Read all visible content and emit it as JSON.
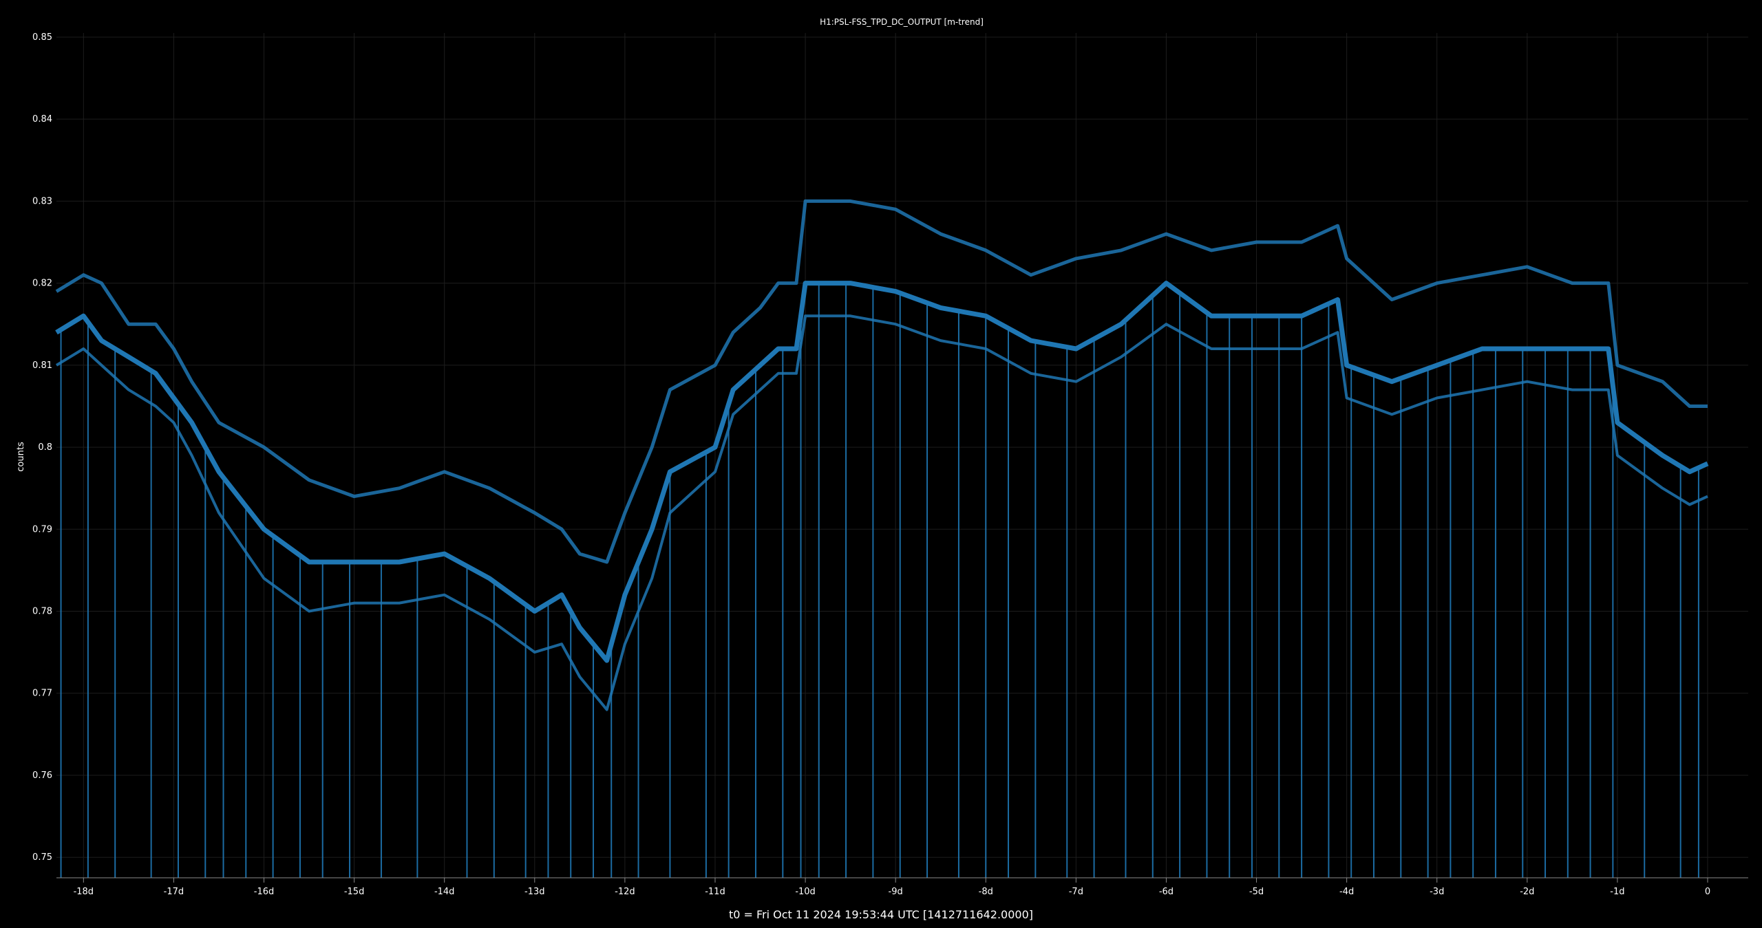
{
  "chart_data": {
    "type": "line",
    "title": "H1:PSL-FSS_TPD_DC_OUTPUT [m-trend]",
    "xlabel": "t0 = Fri Oct 11 2024 19:53:44 UTC [1412711642.0000]",
    "ylabel": "counts",
    "xlim": [
      -18.3,
      0.45
    ],
    "ylim": [
      0.7475,
      0.8505
    ],
    "grid": true,
    "x_ticks": [
      -18,
      -17,
      -16,
      -15,
      -14,
      -13,
      -12,
      -11,
      -10,
      -9,
      -8,
      -7,
      -6,
      -5,
      -4,
      -3,
      -2,
      -1,
      0
    ],
    "x_tick_labels": [
      "-18d",
      "-17d",
      "-16d",
      "-15d",
      "-14d",
      "-13d",
      "-12d",
      "-11d",
      "-10d",
      "-9d",
      "-8d",
      "-7d",
      "-6d",
      "-5d",
      "-4d",
      "-3d",
      "-2d",
      "-1d",
      "0"
    ],
    "y_ticks": [
      0.75,
      0.76,
      0.77,
      0.78,
      0.79,
      0.8,
      0.81,
      0.82,
      0.83,
      0.84,
      0.85
    ],
    "y_tick_labels": [
      "0.75",
      "0.76",
      "0.77",
      "0.78",
      "0.79",
      "0.8",
      "0.81",
      "0.82",
      "0.83",
      "0.84",
      "0.85"
    ],
    "series_color": "#1f77b4",
    "series": [
      {
        "role": "max",
        "x": [
          -18.3,
          -18,
          -17.8,
          -17.5,
          -17.2,
          -17,
          -16.8,
          -16.5,
          -16,
          -15.5,
          -15,
          -14.5,
          -14,
          -13.5,
          -13,
          -12.7,
          -12.5,
          -12.2,
          -12,
          -11.7,
          -11.5,
          -11,
          -10.8,
          -10.5,
          -10.3,
          -10.1,
          -10,
          -9.5,
          -9,
          -8.5,
          -8,
          -7.5,
          -7,
          -6.5,
          -6,
          -5.5,
          -5,
          -4.5,
          -4.1,
          -4,
          -3.5,
          -3,
          -2.5,
          -2,
          -1.5,
          -1.1,
          -1,
          -0.5,
          -0.2,
          0
        ],
        "y": [
          0.819,
          0.821,
          0.82,
          0.815,
          0.815,
          0.812,
          0.808,
          0.803,
          0.8,
          0.796,
          0.794,
          0.795,
          0.797,
          0.795,
          0.792,
          0.79,
          0.787,
          0.786,
          0.792,
          0.8,
          0.807,
          0.81,
          0.814,
          0.817,
          0.82,
          0.82,
          0.83,
          0.83,
          0.829,
          0.826,
          0.824,
          0.821,
          0.823,
          0.824,
          0.826,
          0.824,
          0.825,
          0.825,
          0.827,
          0.823,
          0.818,
          0.82,
          0.821,
          0.822,
          0.82,
          0.82,
          0.81,
          0.808,
          0.805,
          0.805
        ]
      },
      {
        "role": "mean",
        "x": [
          -18.3,
          -18,
          -17.8,
          -17.5,
          -17.2,
          -17,
          -16.8,
          -16.5,
          -16,
          -15.5,
          -15,
          -14.5,
          -14,
          -13.5,
          -13,
          -12.7,
          -12.5,
          -12.2,
          -12,
          -11.7,
          -11.5,
          -11,
          -10.8,
          -10.5,
          -10.3,
          -10.1,
          -10,
          -9.5,
          -9,
          -8.5,
          -8,
          -7.5,
          -7,
          -6.5,
          -6,
          -5.5,
          -5,
          -4.5,
          -4.1,
          -4,
          -3.5,
          -3,
          -2.5,
          -2,
          -1.5,
          -1.1,
          -1,
          -0.5,
          -0.2,
          0
        ],
        "y": [
          0.814,
          0.816,
          0.813,
          0.811,
          0.809,
          0.806,
          0.803,
          0.797,
          0.79,
          0.786,
          0.786,
          0.786,
          0.787,
          0.784,
          0.78,
          0.782,
          0.778,
          0.774,
          0.782,
          0.79,
          0.797,
          0.8,
          0.807,
          0.81,
          0.812,
          0.812,
          0.82,
          0.82,
          0.819,
          0.817,
          0.816,
          0.813,
          0.812,
          0.815,
          0.82,
          0.816,
          0.816,
          0.816,
          0.818,
          0.81,
          0.808,
          0.81,
          0.812,
          0.812,
          0.812,
          0.812,
          0.803,
          0.799,
          0.797,
          0.798
        ]
      },
      {
        "role": "min",
        "x": [
          -18.3,
          -18,
          -17.8,
          -17.5,
          -17.2,
          -17,
          -16.8,
          -16.5,
          -16,
          -15.5,
          -15,
          -14.5,
          -14,
          -13.5,
          -13,
          -12.7,
          -12.5,
          -12.2,
          -12,
          -11.7,
          -11.5,
          -11,
          -10.8,
          -10.5,
          -10.3,
          -10.1,
          -10,
          -9.5,
          -9,
          -8.5,
          -8,
          -7.5,
          -7,
          -6.5,
          -6,
          -5.5,
          -5,
          -4.5,
          -4.1,
          -4,
          -3.5,
          -3,
          -2.5,
          -2,
          -1.5,
          -1.1,
          -1,
          -0.5,
          -0.2,
          0
        ],
        "y": [
          0.81,
          0.812,
          0.81,
          0.807,
          0.805,
          0.803,
          0.799,
          0.792,
          0.784,
          0.78,
          0.781,
          0.781,
          0.782,
          0.779,
          0.775,
          0.776,
          0.772,
          0.768,
          0.776,
          0.784,
          0.792,
          0.797,
          0.804,
          0.807,
          0.809,
          0.809,
          0.816,
          0.816,
          0.815,
          0.813,
          0.812,
          0.809,
          0.808,
          0.811,
          0.815,
          0.812,
          0.812,
          0.812,
          0.814,
          0.806,
          0.804,
          0.806,
          0.807,
          0.808,
          0.807,
          0.807,
          0.799,
          0.795,
          0.793,
          0.794
        ]
      }
    ],
    "spikes": {
      "x": [
        -18.25,
        -17.95,
        -17.65,
        -17.25,
        -16.95,
        -16.65,
        -16.45,
        -16.2,
        -15.9,
        -15.6,
        -15.35,
        -15.05,
        -14.7,
        -14.3,
        -13.75,
        -13.45,
        -13.1,
        -12.85,
        -12.6,
        -12.35,
        -12.15,
        -11.85,
        -11.5,
        -11.1,
        -10.85,
        -10.55,
        -10.25,
        -10.05,
        -9.85,
        -9.55,
        -9.25,
        -8.95,
        -8.65,
        -8.3,
        -8,
        -7.75,
        -7.45,
        -7.1,
        -6.8,
        -6.45,
        -6.15,
        -5.85,
        -5.55,
        -5.3,
        -5.05,
        -4.75,
        -4.5,
        -4.2,
        -3.95,
        -3.7,
        -3.4,
        -3.1,
        -2.85,
        -2.6,
        -2.35,
        -2.05,
        -1.8,
        -1.55,
        -1.3,
        -1.05,
        -0.7,
        -0.3,
        -0.1
      ],
      "y": [
        0.7475,
        0.7475,
        0.7475,
        0.7475,
        0.7475,
        0.7475,
        0.7475,
        0.7475,
        0.7475,
        0.7475,
        0.7475,
        0.7475,
        0.7475,
        0.7475,
        0.7475,
        0.7475,
        0.7475,
        0.7475,
        0.7475,
        0.7475,
        0.7475,
        0.7475,
        0.7475,
        0.7475,
        0.7475,
        0.7475,
        0.7475,
        0.7475,
        0.7475,
        0.7475,
        0.7475,
        0.7475,
        0.7475,
        0.7475,
        0.7475,
        0.7475,
        0.7475,
        0.7475,
        0.7475,
        0.7475,
        0.7475,
        0.7475,
        0.7475,
        0.7475,
        0.7475,
        0.7475,
        0.7475,
        0.7475,
        0.7475,
        0.7475,
        0.7475,
        0.7475,
        0.7475,
        0.7475,
        0.7475,
        0.7475,
        0.7475,
        0.7475,
        0.7475,
        0.7475,
        0.7475,
        0.7475,
        0.7475
      ]
    }
  }
}
